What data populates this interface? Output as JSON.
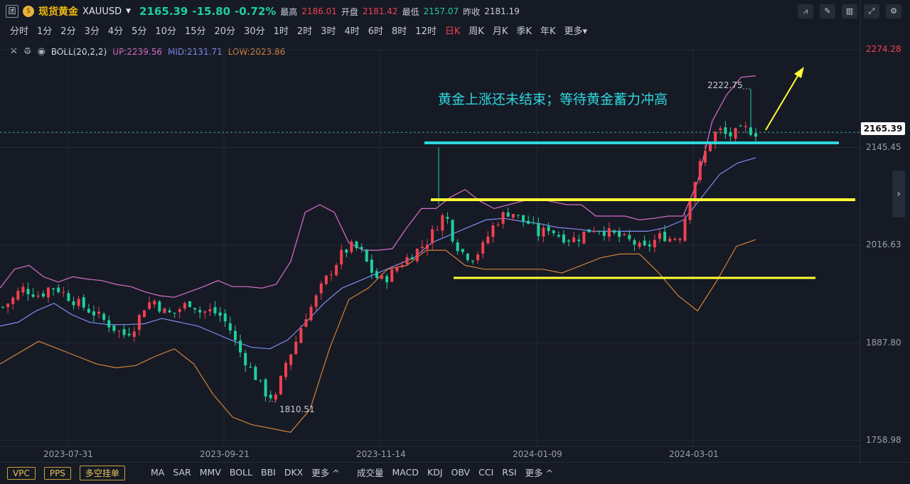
{
  "header": {
    "tuan_icon": "团",
    "coin_icon": "gold-coin-icon",
    "name": "现货黄金",
    "symbol": "XAUUSD",
    "price": "2165.39",
    "change": "-15.80",
    "change_pct": "-0.72%",
    "high_label": "最高",
    "high_value": "2186.01",
    "open_label": "开盘",
    "open_value": "2181.42",
    "low_label": "最低",
    "low_value": "2157.07",
    "prev_label": "昨收",
    "prev_value": "2181.19"
  },
  "timeframes": [
    "分时",
    "1分",
    "2分",
    "3分",
    "4分",
    "5分",
    "10分",
    "15分",
    "20分",
    "30分",
    "1时",
    "2时",
    "3时",
    "4时",
    "6时",
    "8时",
    "12时",
    "日K",
    "周K",
    "月K",
    "季K",
    "年K",
    "更多▾"
  ],
  "active_timeframe_index": 17,
  "indicator": {
    "name": "BOLL(20,2,2)",
    "up": "UP:2239.56",
    "mid": "MID:2131.71",
    "low": "LOW:2023.86"
  },
  "price_axis": [
    "2274.28",
    "2145.45",
    "2016.63",
    "1887.80",
    "1758.98"
  ],
  "current_price_tag": "2165.39",
  "date_axis": [
    "2023-07-31",
    "2023-09-21",
    "2023-11-14",
    "2024-01-09",
    "2024-03-01"
  ],
  "annotation": "黄金上涨还未结束；等待黄金蓄力冲高",
  "high_marker": "2222.75",
  "low_marker": "1810.51",
  "bottom": {
    "boxes": [
      "VPC",
      "PPS",
      "多空挂单"
    ],
    "main_indicators": [
      "MA",
      "SAR",
      "MMV",
      "BOLL",
      "BBI",
      "DKX",
      "更多 ^"
    ],
    "sub_indicators": [
      "成交量",
      "MACD",
      "KDJ",
      "OBV",
      "CCI",
      "RSI",
      "更多 ^"
    ]
  },
  "colors": {
    "background": "#161a25",
    "up_candle": "#f0414f",
    "down_candle": "#1fcf9b",
    "boll_up": "#d86fc8",
    "boll_mid": "#7f8df2",
    "boll_low": "#d2823a",
    "support_line": "#ffff33",
    "resistance_line": "#2fd7dd",
    "annotation_text": "#2fd7dd"
  },
  "chart_data": {
    "type": "candlestick",
    "timeframe": "日K",
    "ylim": [
      1758.98,
      2274.28
    ],
    "y_ticks": [
      2274.28,
      2145.45,
      2016.63,
      1887.8,
      1758.98
    ],
    "close_path": [
      1935,
      1945,
      1960,
      1955,
      1950,
      1962,
      1958,
      1948,
      1940,
      1932,
      1925,
      1915,
      1905,
      1898,
      1910,
      1935,
      1945,
      1930,
      1925,
      1935,
      1942,
      1928,
      1930,
      1925,
      1910,
      1880,
      1860,
      1840,
      1820,
      1815,
      1860,
      1885,
      1920,
      1940,
      1965,
      1985,
      2005,
      2015,
      2010,
      1985,
      1970,
      1975,
      1990,
      2000,
      2010,
      2020,
      2040,
      2060,
      2020,
      2005,
      2000,
      2015,
      2040,
      2055,
      2062,
      2050,
      2045,
      2030,
      2040,
      2030,
      2025,
      2025,
      2035,
      2040,
      2035,
      2030,
      2025,
      2020,
      2010,
      2020,
      2030,
      2025,
      2030,
      2080,
      2120,
      2150,
      2170,
      2160,
      2165,
      2170,
      2165
    ],
    "boll_up": [
      1960,
      1985,
      1990,
      1975,
      1968,
      1975,
      1972,
      1970,
      1965,
      1962,
      1955,
      1950,
      1948,
      1955,
      1962,
      1970,
      1962,
      1962,
      1960,
      1965,
      1995,
      2060,
      2070,
      2060,
      2020,
      2010,
      2010,
      2012,
      2040,
      2065,
      2065,
      2080,
      2090,
      2075,
      2065,
      2070,
      2075,
      2078,
      2074,
      2070,
      2070,
      2055,
      2055,
      2055,
      2050,
      2052,
      2055,
      2055,
      2100,
      2180,
      2215,
      2238,
      2240
    ],
    "boll_mid": [
      1910,
      1915,
      1930,
      1940,
      1925,
      1915,
      1912,
      1912,
      1913,
      1920,
      1915,
      1910,
      1900,
      1890,
      1882,
      1880,
      1892,
      1915,
      1940,
      1960,
      1970,
      1980,
      1990,
      2000,
      2020,
      2030,
      2040,
      2050,
      2052,
      2048,
      2045,
      2040,
      2038,
      2035,
      2035,
      2035,
      2035,
      2040,
      2050,
      2080,
      2110,
      2125,
      2132
    ],
    "boll_low": [
      1860,
      1875,
      1890,
      1880,
      1870,
      1860,
      1855,
      1858,
      1870,
      1880,
      1860,
      1820,
      1790,
      1780,
      1775,
      1770,
      1800,
      1880,
      1945,
      1960,
      1985,
      1990,
      2010,
      2010,
      1990,
      1985,
      1985,
      1985,
      1985,
      1980,
      1990,
      2000,
      2005,
      2005,
      1980,
      1950,
      1930,
      1970,
      2015,
      2024
    ]
  }
}
